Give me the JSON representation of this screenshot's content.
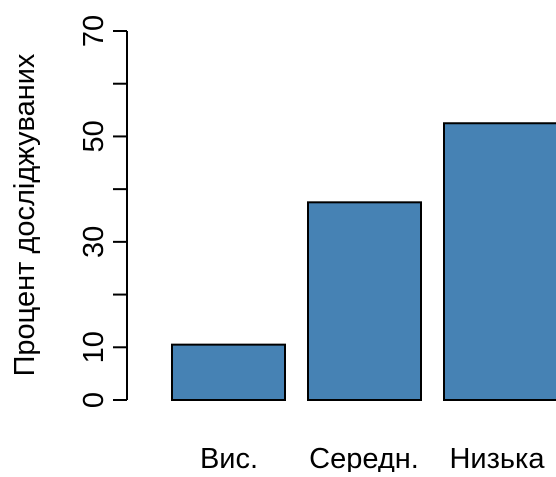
{
  "chart_data": {
    "type": "bar",
    "title": "",
    "xlabel": "",
    "ylabel": "Процент досліджуваних",
    "categories": [
      "Вис.",
      "Середн.",
      "Низька"
    ],
    "values": [
      10.5,
      37.5,
      52.5
    ],
    "ylim": [
      0,
      70
    ],
    "yticks": [
      0,
      10,
      30,
      50,
      70
    ],
    "minor_yticks": [
      20,
      40,
      60
    ],
    "bar_color": "#4682b4",
    "bar_outline_color": "#000000",
    "grid": false,
    "legend": "none"
  }
}
